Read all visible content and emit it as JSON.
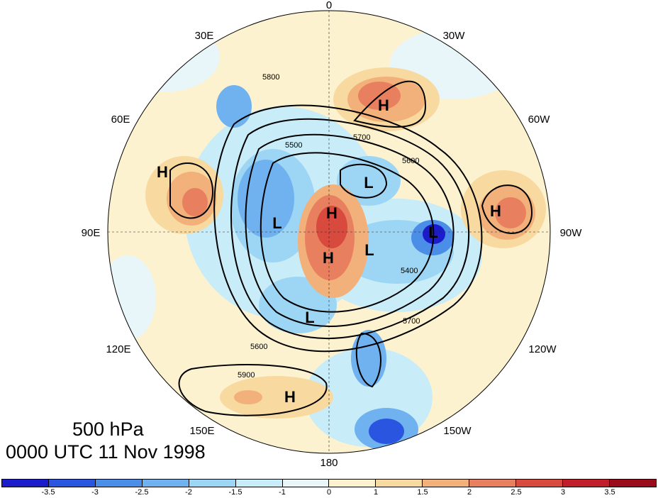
{
  "map": {
    "level_label": "500 hPa",
    "valid_time": "0000 UTC 11 Nov 1998",
    "longitude_labels": [
      "0",
      "30W",
      "60W",
      "90W",
      "120W",
      "150W",
      "180",
      "150E",
      "120E",
      "90E",
      "60E",
      "30E"
    ],
    "contour_labels": [
      "5800",
      "5700",
      "5600",
      "5500",
      "5400",
      "5900"
    ],
    "high_centers": [
      "H",
      "H",
      "H",
      "H",
      "H",
      "H"
    ],
    "low_centers": [
      "L",
      "L",
      "L",
      "L",
      "L"
    ],
    "colorbar": {
      "tick_labels": [
        "-3.5",
        "-3",
        "-2.5",
        "-2",
        "-1.5",
        "-1",
        "0",
        "1",
        "1.5",
        "2",
        "2.5",
        "3",
        "3.5"
      ],
      "colors": [
        "#1c1ccc",
        "#2a55e0",
        "#4a8ee8",
        "#6fb2ef",
        "#9dd6f4",
        "#c8ecf8",
        "#e8f6fa",
        "#fdf2d0",
        "#f8d9a0",
        "#f2b07a",
        "#e88060",
        "#d84a3e",
        "#c01e2a",
        "#9a0c1c"
      ]
    }
  }
}
